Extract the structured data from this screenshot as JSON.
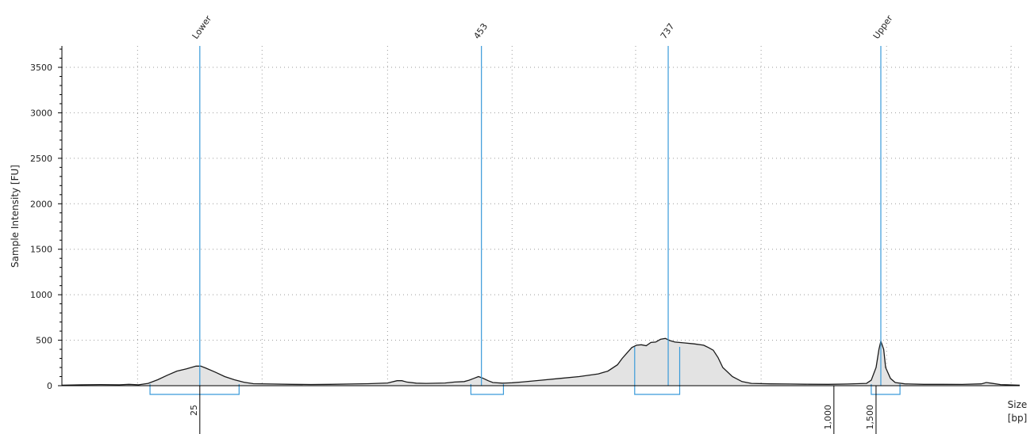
{
  "colors": {
    "marker": "#3a9ad9",
    "trace": "#1a1a1a",
    "fill": "#e3e3e3",
    "grid": "#9a9a9a",
    "axis": "#000000"
  },
  "chart_data": {
    "type": "area",
    "title": "",
    "ylabel": "Sample Intensity [FU]",
    "xlabel": "Size\n[bp]",
    "xlabel_lines": [
      "Size",
      "[bp]"
    ],
    "x_unit": "bp",
    "y_unit": "FU",
    "ylim": [
      0,
      3750
    ],
    "yticks": [
      0,
      500,
      1000,
      1500,
      2000,
      2500,
      3000,
      3500
    ],
    "ytick_labels": [
      "0",
      "500",
      "1000",
      "1500",
      "2000",
      "2500",
      "3000",
      "3500"
    ],
    "xlim": [
      0,
      100
    ],
    "x_note": "x values are percent of trace length (electrophoresis run position); axis is non-linear in bp",
    "xticks": [
      {
        "x": 14.4,
        "label": "25"
      },
      {
        "x": 80.6,
        "label": "1,000"
      },
      {
        "x": 85.0,
        "label": "1,500"
      }
    ],
    "grid": true,
    "grid_style": "dotted",
    "grid_x": [
      7.9,
      20.9,
      34.0,
      47.0,
      59.9,
      73.0,
      86.1,
      99.1
    ],
    "peaks": [
      {
        "label": "Lower",
        "x": 14.4,
        "range": [
          9.2,
          18.5
        ]
      },
      {
        "label": "453",
        "x": 43.8,
        "range": [
          42.7,
          46.1
        ]
      },
      {
        "label": "737",
        "x": 63.3,
        "range": [
          59.8,
          64.5
        ]
      },
      {
        "label": "Upper",
        "x": 85.5,
        "range": [
          84.5,
          87.5
        ]
      }
    ],
    "series": [
      {
        "x": [
          0,
          2,
          4,
          6,
          7,
          8,
          9,
          10,
          11,
          12,
          13,
          14,
          14.5,
          15,
          16,
          17,
          18,
          19,
          20,
          22,
          24,
          26,
          28,
          30,
          32,
          34,
          35,
          35.5,
          36,
          37,
          38,
          40,
          41,
          42,
          42.5,
          43,
          43.5,
          44,
          44.5,
          45,
          46,
          47,
          48,
          50,
          52,
          54,
          56,
          57,
          58,
          58.5,
          59,
          59.5,
          60,
          60.5,
          61,
          61.5,
          62,
          62.5,
          63,
          63.5,
          64,
          65,
          66,
          67,
          67.5,
          68,
          68.5,
          69,
          70,
          71,
          72,
          74,
          76,
          78,
          80,
          82,
          83,
          84,
          84.5,
          85,
          85.3,
          85.5,
          85.8,
          86,
          86.5,
          87,
          88,
          90,
          92,
          94,
          96,
          96.5,
          97,
          98,
          100
        ],
        "y": [
          5,
          10,
          12,
          10,
          15,
          10,
          25,
          65,
          115,
          160,
          185,
          215,
          215,
          195,
          150,
          100,
          65,
          38,
          22,
          18,
          15,
          13,
          15,
          18,
          22,
          30,
          55,
          55,
          40,
          28,
          25,
          30,
          40,
          45,
          60,
          80,
          100,
          80,
          55,
          35,
          28,
          32,
          40,
          60,
          80,
          100,
          130,
          160,
          230,
          300,
          360,
          420,
          445,
          450,
          440,
          475,
          480,
          510,
          520,
          495,
          480,
          470,
          460,
          445,
          420,
          390,
          310,
          200,
          100,
          45,
          25,
          20,
          18,
          16,
          15,
          18,
          22,
          25,
          60,
          200,
          400,
          490,
          400,
          200,
          80,
          35,
          20,
          15,
          15,
          14,
          20,
          35,
          28,
          12,
          5
        ]
      }
    ]
  }
}
